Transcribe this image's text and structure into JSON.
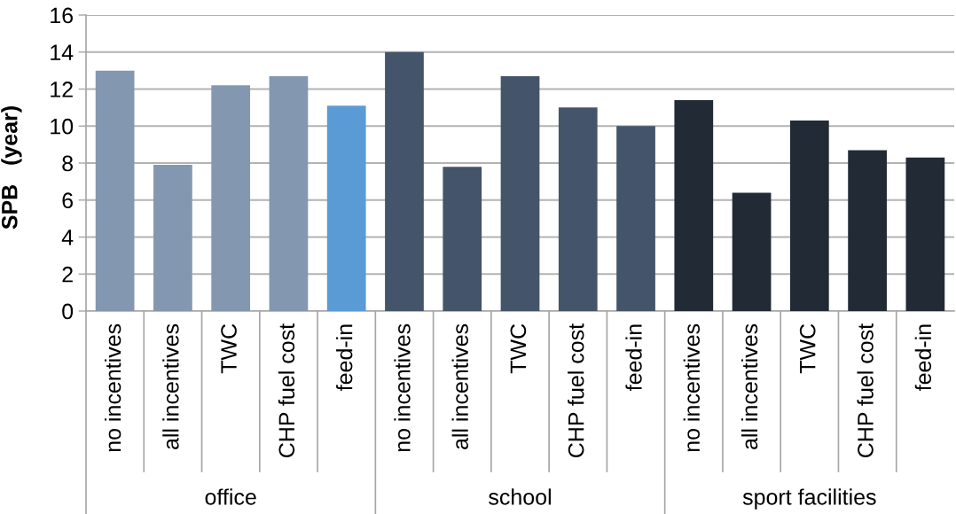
{
  "chart_data": {
    "type": "bar",
    "ylabel": "SPB   (year)",
    "categories": [
      "no incentives",
      "all incentives",
      "TWC",
      "CHP fuel cost",
      "feed-in",
      "no incentives",
      "all incentives",
      "TWC",
      "CHP fuel cost",
      "feed-in",
      "no incentives",
      "all incentives",
      "TWC",
      "CHP fuel cost",
      "feed-in"
    ],
    "values": [
      13.0,
      7.9,
      12.2,
      12.7,
      11.1,
      14.0,
      7.8,
      12.7,
      11.0,
      10.0,
      11.4,
      6.4,
      10.3,
      8.7,
      8.3
    ],
    "colors": [
      "#8497b0",
      "#8497b0",
      "#8497b0",
      "#8497b0",
      "#5b9bd5",
      "#44546a",
      "#44546a",
      "#44546a",
      "#44546a",
      "#44546a",
      "#222a35",
      "#222a35",
      "#222a35",
      "#222a35",
      "#222a35"
    ],
    "annotations": [
      "office",
      "school",
      "sport facilities"
    ],
    "ylim": [
      0,
      16
    ],
    "yticks": [
      0,
      2,
      4,
      6,
      8,
      10,
      12,
      14,
      16
    ],
    "grid": "y"
  }
}
